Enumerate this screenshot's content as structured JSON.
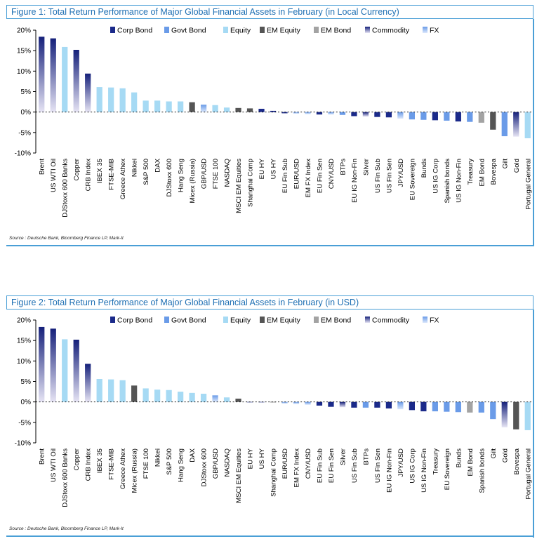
{
  "colors": {
    "Corp Bond": "#1b2a8a",
    "Govt Bond": "#6a9be8",
    "Equity": "#a6daf4",
    "EM Equity": "#555555",
    "EM Bond": "#a3a3a3",
    "Commodity_top": "#15207a",
    "Commodity_bottom": "#e6e4f4",
    "FX_top": "#6a9be8",
    "FX_bottom": "#dbe7fb",
    "frame": "#4a9fd6"
  },
  "legend": [
    "Corp Bond",
    "Govt Bond",
    "Equity",
    "EM Equity",
    "EM Bond",
    "Commodity",
    "FX"
  ],
  "chart_data": [
    {
      "type": "bar",
      "title": "Figure 1: Total Return Performance of Major Global Financial Assets in February (in Local Currency)",
      "source": "Source : Deutsche Bank, Bloomberg Finance LP, Mark-It",
      "ylim": [
        -10,
        20
      ],
      "yticks": [
        "20%",
        "15%",
        "10%",
        "5%",
        "0%",
        "-5%",
        "-10%"
      ],
      "legend_position": "top-right",
      "categories": [
        "Brent",
        "US WTI Oil",
        "DJStoxx 600 Banks",
        "Copper",
        "CRB Index",
        "IBEX 35",
        "FTSE-MIB",
        "Greece Athex",
        "Nikkei",
        "S&P 500",
        "DAX",
        "DJStoxx 600",
        "Hang Seng",
        "Micex (Russia)",
        "GBP/USD",
        "FTSE 100",
        "NASDAQ",
        "MSCI EM Equities",
        "Shanghai Comp",
        "EU HY",
        "US HY",
        "EU Fin Sub",
        "EUR/USD",
        "EM FX Index",
        "EU Fin Sen",
        "CNY/USD",
        "BTPs",
        "EU IG Non-Fin",
        "Silver",
        "US Fin Sub",
        "US Fin Sen",
        "JPY/USD",
        "EU Sovereign",
        "Bunds",
        "US IG Corp",
        "Spanish bonds",
        "US IG Non-Fin",
        "Treasury",
        "EM Bond",
        "Bovespa",
        "Gilt",
        "Gold",
        "Portugal General"
      ],
      "values": [
        18.4,
        18.0,
        15.9,
        15.2,
        9.4,
        6.1,
        6.0,
        5.8,
        4.8,
        2.8,
        2.8,
        2.6,
        2.6,
        2.4,
        1.8,
        1.7,
        1.1,
        1.0,
        0.9,
        0.8,
        0.3,
        -0.3,
        -0.4,
        -0.5,
        -0.6,
        -0.6,
        -0.7,
        -1.0,
        -1.1,
        -1.2,
        -1.3,
        -1.6,
        -1.8,
        -1.9,
        -2.0,
        -2.1,
        -2.3,
        -2.4,
        -2.6,
        -4.3,
        -5.9,
        -6.0,
        -6.4
      ],
      "groups": [
        "Commodity",
        "Commodity",
        "Equity",
        "Commodity",
        "Commodity",
        "Equity",
        "Equity",
        "Equity",
        "Equity",
        "Equity",
        "Equity",
        "Equity",
        "Equity",
        "EM Equity",
        "FX",
        "Equity",
        "Equity",
        "EM Equity",
        "EM Equity",
        "Corp Bond",
        "Corp Bond",
        "Corp Bond",
        "FX",
        "FX",
        "Corp Bond",
        "FX",
        "Govt Bond",
        "Corp Bond",
        "Commodity",
        "Corp Bond",
        "Corp Bond",
        "FX",
        "Govt Bond",
        "Govt Bond",
        "Corp Bond",
        "Govt Bond",
        "Corp Bond",
        "Govt Bond",
        "EM Bond",
        "EM Equity",
        "Govt Bond",
        "Commodity",
        "Equity"
      ]
    },
    {
      "type": "bar",
      "title": "Figure 2: Total Return Performance of Major Global Financial Assets in February (in USD)",
      "source": "Source : Deutsche Bank, Bloomberg Finance LP, Mark-It",
      "ylim": [
        -10,
        20
      ],
      "yticks": [
        "20%",
        "15%",
        "10%",
        "5%",
        "0%",
        "-5%",
        "-10%"
      ],
      "legend_position": "top-right",
      "categories": [
        "Brent",
        "US WTI Oil",
        "DJStoxx 600 Banks",
        "Copper",
        "CRB Index",
        "IBEX 35",
        "FTSE-MIB",
        "Greece Athex",
        "Micex (Russia)",
        "FTSE 100",
        "Nikkei",
        "S&P 500",
        "Hang Seng",
        "DAX",
        "DJStoxx 600",
        "GBP/USD",
        "NASDAQ",
        "MSCI EM Equities",
        "EU HY",
        "US HY",
        "Shanghai Comp",
        "EUR/USD",
        "EM FX Index",
        "CNY/USD",
        "EU Fin Sub",
        "EU Fin Sen",
        "Silver",
        "US Fin Sub",
        "BTPs",
        "US Fin Sen",
        "EU IG Non-Fin",
        "JPY/USD",
        "US IG Corp",
        "US IG Non-Fin",
        "Treasury",
        "EU Sovereign",
        "Bunds",
        "EM Bond",
        "Spanish bonds",
        "Gilt",
        "Gold",
        "Bovespa",
        "Portugal General"
      ],
      "values": [
        18.3,
        17.9,
        15.3,
        15.2,
        9.3,
        5.6,
        5.5,
        5.3,
        4.0,
        3.3,
        3.0,
        2.9,
        2.5,
        2.2,
        2.0,
        1.6,
        1.1,
        0.8,
        0.0,
        0.0,
        -0.1,
        -0.4,
        -0.5,
        -0.7,
        -0.9,
        -1.2,
        -1.3,
        -1.4,
        -1.4,
        -1.4,
        -1.6,
        -1.8,
        -2.0,
        -2.3,
        -2.3,
        -2.4,
        -2.5,
        -2.6,
        -2.6,
        -4.2,
        -6.2,
        -6.7,
        -6.9
      ],
      "groups": [
        "Commodity",
        "Commodity",
        "Equity",
        "Commodity",
        "Commodity",
        "Equity",
        "Equity",
        "Equity",
        "EM Equity",
        "Equity",
        "Equity",
        "Equity",
        "Equity",
        "Equity",
        "Equity",
        "FX",
        "Equity",
        "EM Equity",
        "Corp Bond",
        "Corp Bond",
        "EM Equity",
        "FX",
        "FX",
        "FX",
        "Corp Bond",
        "Corp Bond",
        "Commodity",
        "Corp Bond",
        "Govt Bond",
        "Corp Bond",
        "Corp Bond",
        "FX",
        "Corp Bond",
        "Corp Bond",
        "Govt Bond",
        "Govt Bond",
        "Govt Bond",
        "EM Bond",
        "Govt Bond",
        "Govt Bond",
        "Commodity",
        "EM Equity",
        "Equity"
      ]
    }
  ]
}
